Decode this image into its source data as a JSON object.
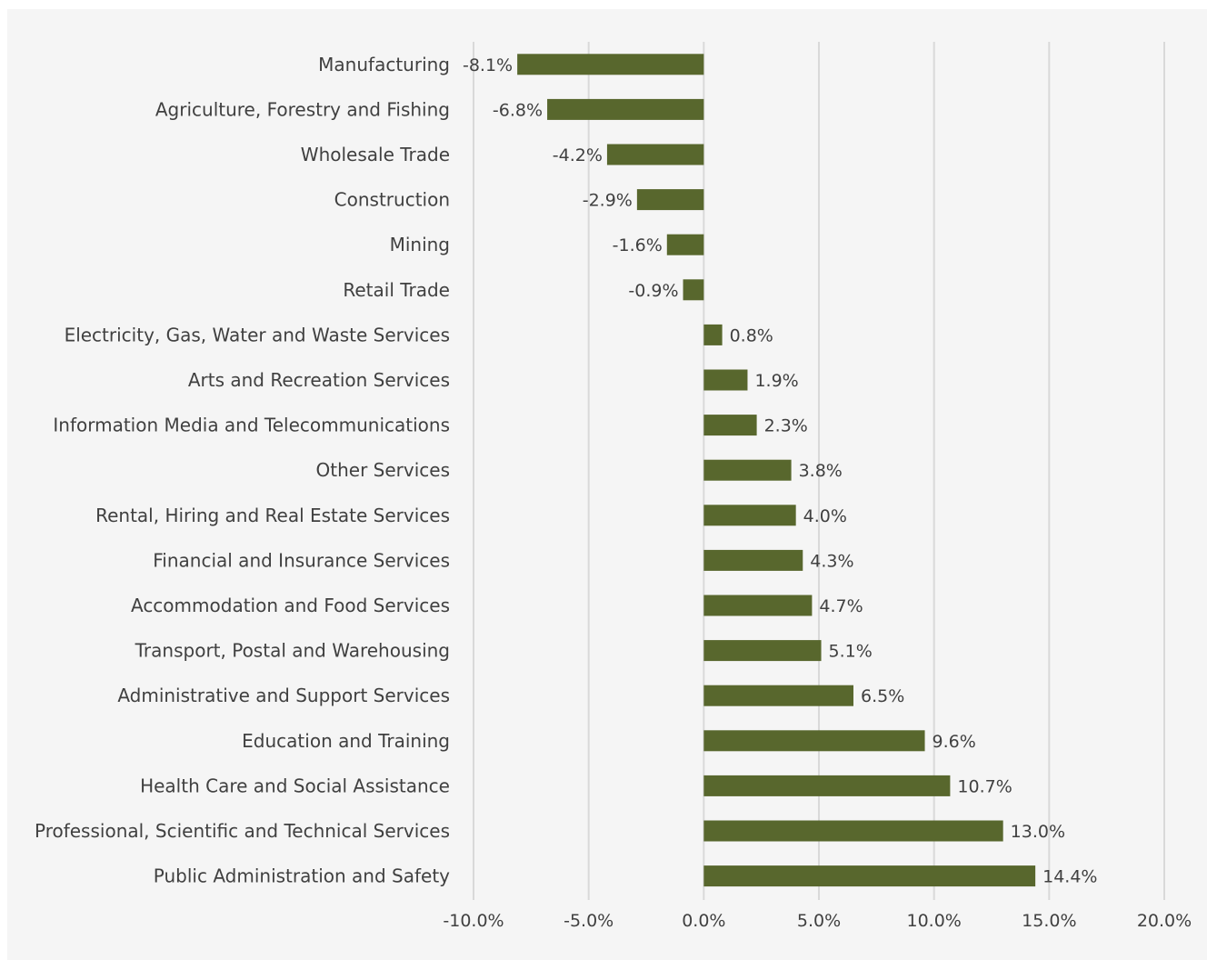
{
  "chart_data": {
    "type": "bar",
    "orientation": "horizontal",
    "title": "",
    "xlabel": "",
    "ylabel": "",
    "xlim": [
      -10,
      20
    ],
    "grid": true,
    "bar_color": "#58672d",
    "categories": [
      "Manufacturing",
      "Agriculture, Forestry and Fishing",
      "Wholesale Trade",
      "Construction",
      "Mining",
      "Retail Trade",
      "Electricity, Gas, Water and Waste Services",
      "Arts and Recreation Services",
      "Information Media and Telecommunications",
      "Other Services",
      "Rental, Hiring and Real Estate Services",
      "Financial and Insurance Services",
      "Accommodation and Food Services",
      "Transport, Postal and Warehousing",
      "Administrative and Support Services",
      "Education and Training",
      "Health Care and Social Assistance",
      "Professional, Scientific and Technical Services",
      "Public Administration and Safety"
    ],
    "values": [
      -8.1,
      -6.8,
      -4.2,
      -2.9,
      -1.6,
      -0.9,
      0.8,
      1.9,
      2.3,
      3.8,
      4.0,
      4.3,
      4.7,
      5.1,
      6.5,
      9.6,
      10.7,
      13.0,
      14.4
    ],
    "data_labels": [
      "-8.1%",
      "-6.8%",
      "-4.2%",
      "-2.9%",
      "-1.6%",
      "-0.9%",
      "0.8%",
      "1.9%",
      "2.3%",
      "3.8%",
      "4.0%",
      "4.3%",
      "4.7%",
      "5.1%",
      "6.5%",
      "9.6%",
      "10.7%",
      "13.0%",
      "14.4%"
    ],
    "ticks": [
      -10,
      -5,
      0,
      5,
      10,
      15,
      20
    ],
    "tick_labels": [
      "-10.0%",
      "-5.0%",
      "0.0%",
      "5.0%",
      "10.0%",
      "15.0%",
      "20.0%"
    ]
  }
}
